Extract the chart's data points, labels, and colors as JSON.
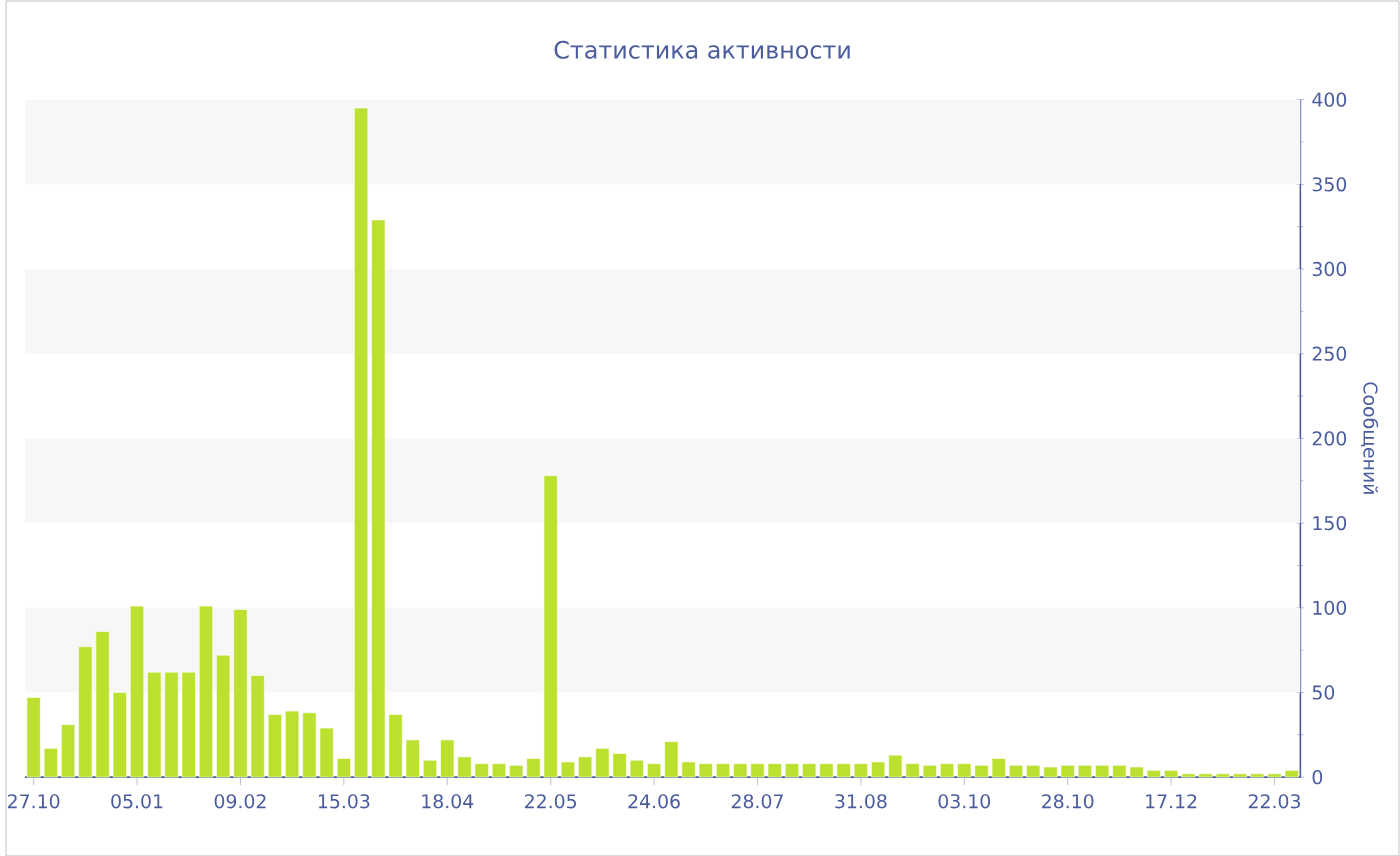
{
  "chart_data": {
    "type": "bar",
    "title": "Статистика активности",
    "ylabel": "Сообщений",
    "color": "#bbe02f",
    "categories": [
      "27.10",
      null,
      null,
      null,
      null,
      null,
      "05.01",
      null,
      null,
      null,
      null,
      null,
      "09.02",
      null,
      null,
      null,
      null,
      null,
      "15.03",
      null,
      null,
      null,
      null,
      null,
      "18.04",
      null,
      null,
      null,
      null,
      null,
      "22.05",
      null,
      null,
      null,
      null,
      null,
      "24.06",
      null,
      null,
      null,
      null,
      null,
      "28.07",
      null,
      null,
      null,
      null,
      null,
      "31.08",
      null,
      null,
      null,
      null,
      null,
      "03.10",
      null,
      null,
      null,
      null,
      null,
      "28.10",
      null,
      null,
      null,
      null,
      null,
      "17.12",
      null,
      null,
      null,
      null,
      null,
      "22.03",
      null
    ],
    "values": [
      47,
      17,
      31,
      77,
      86,
      50,
      101,
      62,
      62,
      62,
      101,
      72,
      99,
      60,
      37,
      39,
      38,
      29,
      11,
      395,
      329,
      37,
      22,
      10,
      22,
      12,
      8,
      8,
      7,
      11,
      178,
      9,
      12,
      17,
      14,
      10,
      8,
      21,
      9,
      8,
      8,
      8,
      8,
      8,
      8,
      8,
      8,
      8,
      8,
      9,
      13,
      8,
      7,
      8,
      8,
      7,
      11,
      7,
      7,
      6,
      7,
      7,
      7,
      7,
      6,
      4,
      4,
      2,
      2,
      2,
      2,
      2,
      2,
      4
    ],
    "ylim": [
      0,
      400
    ],
    "yticks": [
      0,
      50,
      100,
      150,
      200,
      250,
      300,
      350,
      400
    ],
    "bands": [
      {
        "axis": "y",
        "from": 50,
        "to": 100,
        "color": "#f7f7f7"
      },
      {
        "axis": "y",
        "from": 150,
        "to": 200,
        "color": "#f7f7f7"
      },
      {
        "axis": "y",
        "from": 250,
        "to": 300,
        "color": "#f7f7f7"
      },
      {
        "axis": "y",
        "from": 350,
        "to": 400,
        "color": "#f7f7f7"
      }
    ]
  }
}
